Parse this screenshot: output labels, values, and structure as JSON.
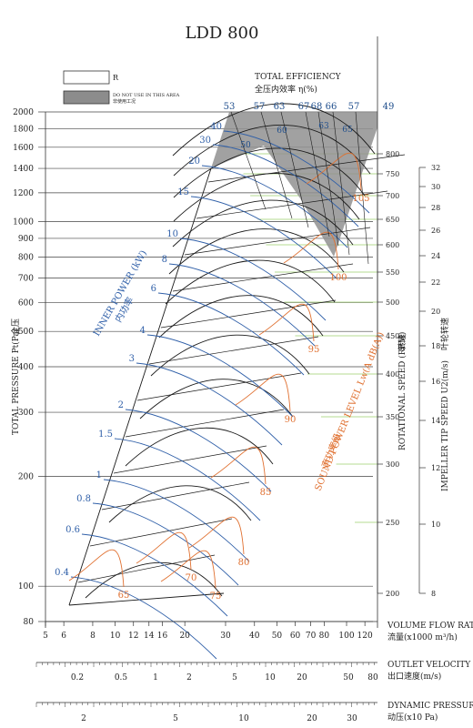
{
  "chart_data": {
    "type": "line",
    "title": "LDD 800",
    "legend": {
      "r_label": "R",
      "restricted_label_en": "DO NOT USE IN THIS AREA",
      "restricted_label_cn": "非使用工况"
    },
    "efficiency_title_en": "TOTAL EFFICIENCY",
    "efficiency_title_cn": "全压内效率 η(%)",
    "efficiency_labels": [
      "53",
      "57",
      "63",
      "67",
      "68",
      "66",
      "57",
      "49"
    ],
    "efficiency_inner_labels": [
      "50",
      "60",
      "63",
      "65"
    ],
    "y_left": {
      "label_en": "TOTAL PRESSURE Pt(Pa)",
      "label_cn": "全压",
      "scale": "log",
      "range": [
        80,
        2000
      ],
      "ticks": [
        "80",
        "100",
        "200",
        "300",
        "400",
        "500",
        "600",
        "700",
        "800",
        "900",
        "1000",
        "1200",
        "1400",
        "1600",
        "1800",
        "2000"
      ]
    },
    "x_main": {
      "label_en": "VOLUME FLOW RATE",
      "label_cn": "流量(x1000 m³/h)",
      "scale": "log",
      "range": [
        5,
        130
      ],
      "ticks": [
        "5",
        "6",
        "8",
        "10",
        "12",
        "14",
        "16",
        "20",
        "30",
        "40",
        "50",
        "60",
        "70",
        "80",
        "100",
        "120"
      ]
    },
    "x_velocity": {
      "label_en": "OUTLET VELOCITY",
      "label_cn": "出口速度(m/s)",
      "ticks": [
        "0.2",
        "0.5",
        "1",
        "2",
        "5",
        "10",
        "20",
        "50",
        "80"
      ]
    },
    "x_dynamic": {
      "label_en": "DYNAMIC PRESSURE",
      "label_cn": "动压(x10 Pa)",
      "ticks": [
        "2",
        "5",
        "10",
        "20",
        "30"
      ]
    },
    "y_rpm": {
      "label_en": "ROTATIONAL SPEED (RPM)",
      "label_cn": "转速",
      "ticks": [
        "200",
        "250",
        "300",
        "350",
        "400",
        "450",
        "500",
        "550",
        "600",
        "650",
        "700",
        "750",
        "800"
      ]
    },
    "y_tip": {
      "label_en": "IMPELLER TIP SPEED U2(m/s)",
      "label_cn": "叶轮转速",
      "ticks": [
        "8",
        "10",
        "12",
        "14",
        "16",
        "18",
        "20",
        "22",
        "24",
        "26",
        "28",
        "30",
        "32"
      ]
    },
    "inner_power": {
      "label_en": "INNER POWER (kW)",
      "label_cn": "内功率",
      "values": [
        "0.4",
        "0.6",
        "0.8",
        "1",
        "1.5",
        "2",
        "3",
        "4",
        "6",
        "8",
        "10",
        "15",
        "20",
        "30",
        "40"
      ]
    },
    "sound_power": {
      "label_en": "SOUND POWER LEVEL Lw(A dB(A))",
      "label_cn": "声功率级",
      "values": [
        "65",
        "70",
        "75",
        "80",
        "85",
        "90",
        "95",
        "100",
        "105"
      ]
    }
  }
}
